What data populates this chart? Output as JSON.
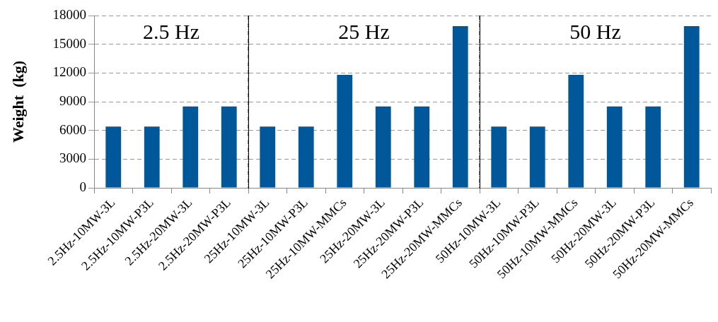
{
  "chart_data": [
    {
      "type": "bar",
      "title": "2.5 Hz",
      "ylabel": "Weight  (kg)",
      "categories": [
        "2.5Hz-10MW-3L",
        "2.5Hz-10MW-P3L",
        "2.5Hz-20MW-3L",
        "2.5Hz-20MW-P3L"
      ],
      "values": [
        6400,
        6400,
        8500,
        8500
      ],
      "color": "#00589a",
      "ylim": [
        0,
        18000
      ],
      "yticks": [
        0,
        3000,
        6000,
        9000,
        12000,
        15000,
        18000
      ],
      "grid": "y"
    },
    {
      "type": "bar",
      "title": "25 Hz",
      "categories": [
        "25Hz-10MW-3L",
        "25Hz-10MW-P3L",
        "25Hz-10MW-MMCs",
        "25Hz-20MW-3L",
        "25Hz-20MW-P3L",
        "25Hz-20MW-MMCs"
      ],
      "values": [
        6400,
        6400,
        11800,
        8500,
        8500,
        16900
      ],
      "color": "#00589a",
      "ylim": [
        0,
        18000
      ],
      "yticks": [
        0,
        3000,
        6000,
        9000,
        12000,
        15000,
        18000
      ],
      "grid": "y",
      "tick_labels": "x"
    },
    {
      "type": "bar",
      "title": "50 Hz",
      "categories": [
        "50Hz-10MW-3L",
        "50Hz-10MW-P3L",
        "50Hz-10MW-MMCs",
        "50Hz-20MW-3L",
        "50Hz-20MW-P3L",
        "50Hz-20MW-MMCs"
      ],
      "values": [
        6400,
        6400,
        11800,
        8500,
        8500,
        16900
      ],
      "color": "#00589a",
      "ylim": [
        0,
        18000
      ],
      "yticks": [
        0,
        3000,
        6000,
        9000,
        12000,
        15000,
        18000
      ],
      "grid": "y",
      "tick_labels": "x"
    }
  ]
}
